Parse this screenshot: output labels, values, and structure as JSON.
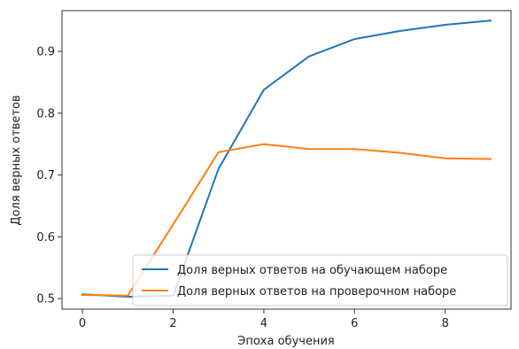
{
  "chart_data": {
    "type": "line",
    "title": "",
    "xlabel": "Эпоха обучения",
    "ylabel": "Доля верных ответов",
    "xlim": [
      -0.45,
      9.45
    ],
    "ylim": [
      0.483,
      0.966
    ],
    "xticks": [
      0,
      2,
      4,
      6,
      8
    ],
    "yticks": [
      0.5,
      0.6,
      0.7,
      0.8,
      0.9
    ],
    "x": [
      0,
      1,
      2,
      3,
      4,
      5,
      6,
      7,
      8,
      9
    ],
    "grid": false,
    "legend_position": "lower-right",
    "series": [
      {
        "name": "Доля верных ответов на обучающем наборе",
        "color": "#1f77b4",
        "values": [
          0.507,
          0.503,
          0.505,
          0.71,
          0.838,
          0.892,
          0.92,
          0.933,
          0.943,
          0.95
        ]
      },
      {
        "name": "Доля верных ответов на проверочном наборе",
        "color": "#ff7f0e",
        "values": [
          0.506,
          0.505,
          0.62,
          0.737,
          0.75,
          0.742,
          0.742,
          0.736,
          0.727,
          0.726
        ]
      }
    ]
  }
}
